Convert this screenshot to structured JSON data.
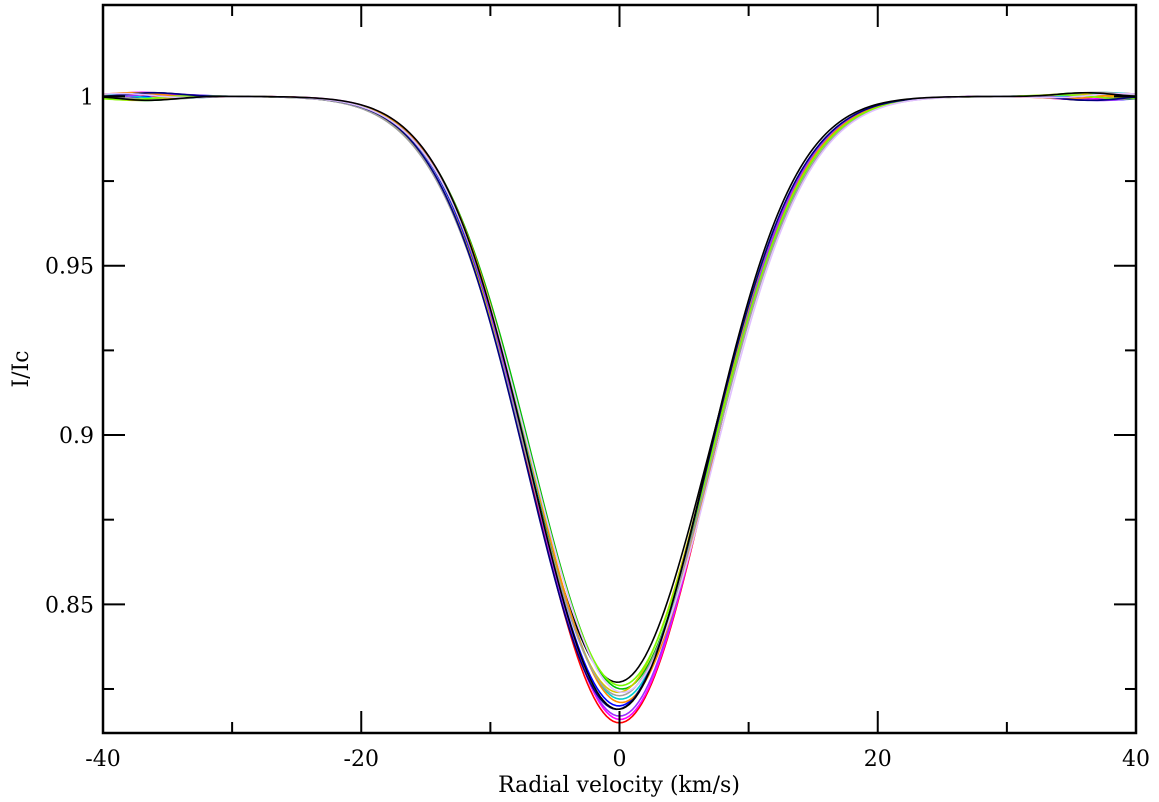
{
  "chart_data": {
    "type": "line",
    "title": "",
    "xlabel": "Radial velocity (km/s)",
    "ylabel": "I/Ic",
    "xlim": [
      -40,
      40
    ],
    "ylim": [
      0.812,
      1.027
    ],
    "x_major_ticks": [
      -40,
      -20,
      0,
      20,
      40
    ],
    "x_tick_labels": [
      "-40",
      "-20",
      "0",
      "20",
      "40"
    ],
    "x_minor_ticks": [
      -30,
      -10,
      10,
      30
    ],
    "y_major_ticks": [
      0.85,
      0.9,
      0.95,
      1.0
    ],
    "y_tick_labels": [
      "0.85",
      "0.9",
      "0.95",
      "1"
    ],
    "y_minor_ticks": [
      0.825,
      0.875,
      0.925,
      0.975
    ],
    "grid": false,
    "legend": "none",
    "series": [
      {
        "color": "#000000",
        "depth": 0.173,
        "sigma": 7.1,
        "offset": -0.15
      },
      {
        "color": "#ff0000",
        "depth": 0.185,
        "sigma": 6.9,
        "offset": 0.0
      },
      {
        "color": "#00c000",
        "depth": 0.175,
        "sigma": 7.0,
        "offset": 0.2
      },
      {
        "color": "#0000ff",
        "depth": 0.18,
        "sigma": 6.95,
        "offset": -0.05
      },
      {
        "color": "#ff00ff",
        "depth": 0.184,
        "sigma": 6.85,
        "offset": 0.05
      },
      {
        "color": "#00cccc",
        "depth": 0.178,
        "sigma": 7.0,
        "offset": 0.1
      },
      {
        "color": "#d4c800",
        "depth": 0.176,
        "sigma": 7.05,
        "offset": -0.1
      },
      {
        "color": "#9b30ff",
        "depth": 0.183,
        "sigma": 6.9,
        "offset": 0.0
      },
      {
        "color": "#ff8c00",
        "depth": 0.179,
        "sigma": 6.95,
        "offset": 0.15
      },
      {
        "color": "#a0a0a0",
        "depth": 0.177,
        "sigma": 7.15,
        "offset": 0.0
      },
      {
        "color": "#7cfc00",
        "depth": 0.174,
        "sigma": 7.05,
        "offset": 0.1
      },
      {
        "color": "#000080",
        "depth": 0.181,
        "sigma": 6.95,
        "offset": -0.2
      },
      {
        "color": "#e0c0ff",
        "depth": 0.176,
        "sigma": 7.1,
        "offset": 0.25
      },
      {
        "color": "#000000",
        "depth": 0.181,
        "sigma": 6.8,
        "offset": -0.1
      }
    ]
  }
}
